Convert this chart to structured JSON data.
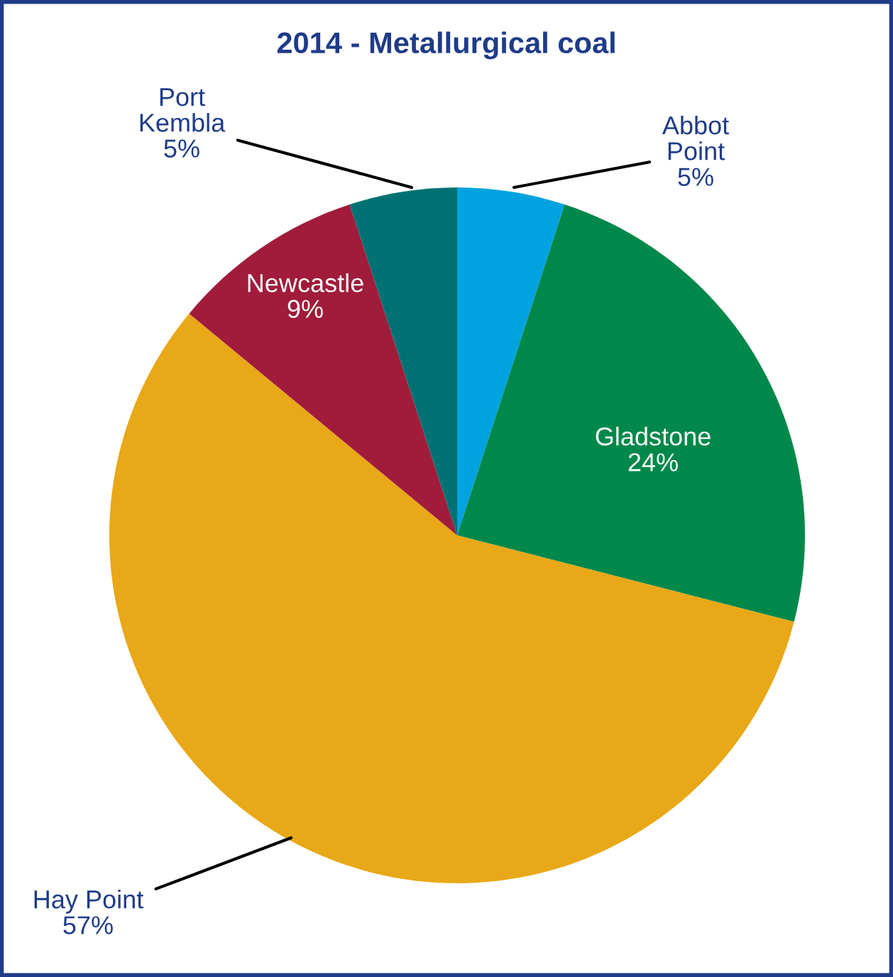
{
  "chart_data": {
    "type": "pie",
    "title": "2014 - Metallurgical coal",
    "categories": [
      "Abbot Point",
      "Gladstone",
      "Hay Point",
      "Newcastle",
      "Port Kembla"
    ],
    "values": [
      5,
      24,
      57,
      9,
      5
    ],
    "value_labels": [
      "5%",
      "24%",
      "57%",
      "9%",
      "5%"
    ],
    "colors": [
      "#00a3e0",
      "#00884a",
      "#e8a817",
      "#a01c3a",
      "#007173"
    ],
    "legend": false
  }
}
